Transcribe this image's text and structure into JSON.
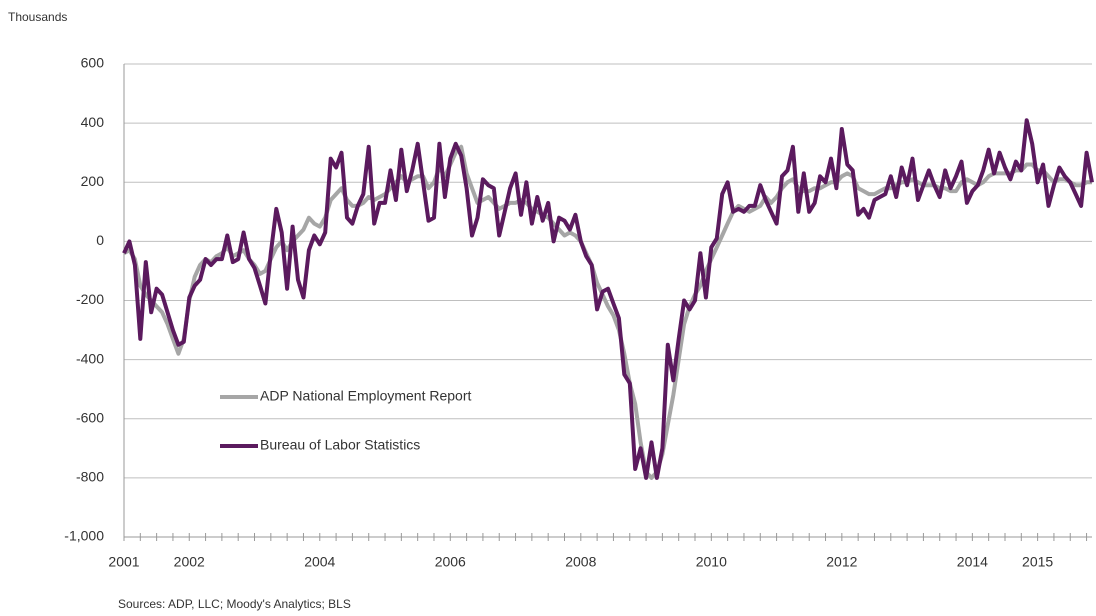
{
  "chart_data": {
    "type": "line",
    "y_axis_label": "Thousands",
    "source": "Sources: ADP, LLC; Moody's Analytics; BLS",
    "categories": [
      "2001",
      null,
      null,
      null,
      null,
      null,
      null,
      null,
      null,
      null,
      null,
      null,
      "2002",
      null,
      null,
      null,
      null,
      null,
      null,
      null,
      null,
      null,
      null,
      null,
      null,
      null,
      null,
      null,
      null,
      null,
      null,
      null,
      null,
      null,
      null,
      null,
      "2004",
      null,
      null,
      null,
      null,
      null,
      null,
      null,
      null,
      null,
      null,
      null,
      null,
      null,
      null,
      null,
      null,
      null,
      null,
      null,
      null,
      null,
      null,
      null,
      "2006",
      null,
      null,
      null,
      null,
      null,
      null,
      null,
      null,
      null,
      null,
      null,
      null,
      null,
      null,
      null,
      null,
      null,
      null,
      null,
      null,
      null,
      null,
      null,
      "2008",
      null,
      null,
      null,
      null,
      null,
      null,
      null,
      null,
      null,
      null,
      null,
      null,
      null,
      null,
      null,
      null,
      null,
      null,
      null,
      null,
      null,
      null,
      null,
      "2010",
      null,
      null,
      null,
      null,
      null,
      null,
      null,
      null,
      null,
      null,
      null,
      null,
      null,
      null,
      null,
      null,
      null,
      null,
      null,
      null,
      null,
      null,
      null,
      "2012",
      null,
      null,
      null,
      null,
      null,
      null,
      null,
      null,
      null,
      null,
      null,
      null,
      null,
      null,
      null,
      null,
      null,
      null,
      null,
      null,
      null,
      null,
      null,
      "2014",
      null,
      null,
      null,
      null,
      null,
      null,
      null,
      null,
      null,
      null,
      null,
      "2015",
      null,
      null,
      null,
      null,
      null,
      null,
      null,
      null,
      null,
      null
    ],
    "series": [
      {
        "name": "ADP National Employment Report",
        "color": "#a6a6a6",
        "width": 4,
        "values": [
          -40,
          -30,
          -60,
          -150,
          -180,
          -200,
          -220,
          -240,
          -280,
          -330,
          -380,
          -330,
          -200,
          -120,
          -80,
          -60,
          -70,
          -50,
          -40,
          -20,
          -50,
          -40,
          -30,
          -60,
          -80,
          -110,
          -100,
          -60,
          -20,
          0,
          -30,
          0,
          20,
          40,
          80,
          60,
          50,
          80,
          140,
          160,
          180,
          140,
          120,
          120,
          130,
          150,
          140,
          150,
          160,
          180,
          200,
          220,
          200,
          210,
          220,
          220,
          180,
          200,
          250,
          220,
          260,
          300,
          320,
          230,
          180,
          130,
          140,
          150,
          130,
          110,
          120,
          130,
          130,
          140,
          130,
          110,
          100,
          90,
          80,
          60,
          40,
          20,
          30,
          20,
          0,
          -40,
          -80,
          -140,
          -180,
          -220,
          -250,
          -300,
          -380,
          -480,
          -550,
          -680,
          -780,
          -800,
          -780,
          -720,
          -620,
          -520,
          -400,
          -280,
          -220,
          -180,
          -150,
          -100,
          -60,
          -20,
          20,
          60,
          100,
          120,
          110,
          100,
          110,
          120,
          150,
          130,
          150,
          180,
          200,
          210,
          180,
          170,
          170,
          180,
          180,
          190,
          200,
          200,
          220,
          230,
          220,
          180,
          170,
          160,
          160,
          170,
          180,
          180,
          190,
          200,
          200,
          210,
          200,
          190,
          190,
          190,
          180,
          180,
          170,
          170,
          200,
          210,
          200,
          190,
          200,
          220,
          230,
          230,
          230,
          230,
          240,
          240,
          260,
          260,
          240,
          240,
          220,
          200,
          210,
          210,
          200,
          190,
          190,
          200,
          200
        ]
      },
      {
        "name": "Bureau of Labor Statistics",
        "color": "#5b1a5e",
        "width": 4,
        "values": [
          -40,
          0,
          -80,
          -330,
          -70,
          -240,
          -160,
          -180,
          -240,
          -300,
          -350,
          -340,
          -190,
          -150,
          -130,
          -60,
          -80,
          -60,
          -60,
          20,
          -70,
          -60,
          30,
          -60,
          -90,
          -150,
          -210,
          -40,
          110,
          30,
          -160,
          50,
          -130,
          -190,
          -30,
          20,
          -10,
          30,
          280,
          250,
          300,
          80,
          60,
          120,
          160,
          320,
          60,
          130,
          130,
          240,
          140,
          310,
          170,
          240,
          330,
          200,
          70,
          80,
          330,
          150,
          280,
          330,
          290,
          180,
          20,
          80,
          210,
          190,
          180,
          20,
          100,
          180,
          230,
          90,
          200,
          60,
          150,
          70,
          130,
          0,
          80,
          70,
          40,
          90,
          0,
          -50,
          -80,
          -230,
          -170,
          -160,
          -210,
          -260,
          -450,
          -480,
          -770,
          -700,
          -800,
          -680,
          -800,
          -700,
          -350,
          -470,
          -330,
          -200,
          -230,
          -200,
          -40,
          -190,
          -20,
          10,
          160,
          200,
          100,
          110,
          100,
          120,
          120,
          190,
          140,
          100,
          60,
          220,
          240,
          320,
          100,
          230,
          100,
          130,
          220,
          200,
          280,
          180,
          380,
          260,
          240,
          90,
          110,
          80,
          140,
          150,
          160,
          220,
          150,
          250,
          190,
          280,
          140,
          190,
          240,
          190,
          150,
          240,
          180,
          220,
          270,
          130,
          170,
          190,
          240,
          310,
          230,
          300,
          250,
          210,
          270,
          240,
          410,
          330,
          200,
          260,
          120,
          190,
          250,
          220,
          200,
          160,
          120,
          300,
          200
        ]
      }
    ],
    "ylim": [
      -1000,
      600
    ],
    "yticks": [
      {
        "value": -1000,
        "label": "-1,000"
      },
      -800,
      -600,
      -400,
      -200,
      0,
      200,
      400,
      600
    ],
    "grid": true,
    "legend": "left"
  }
}
